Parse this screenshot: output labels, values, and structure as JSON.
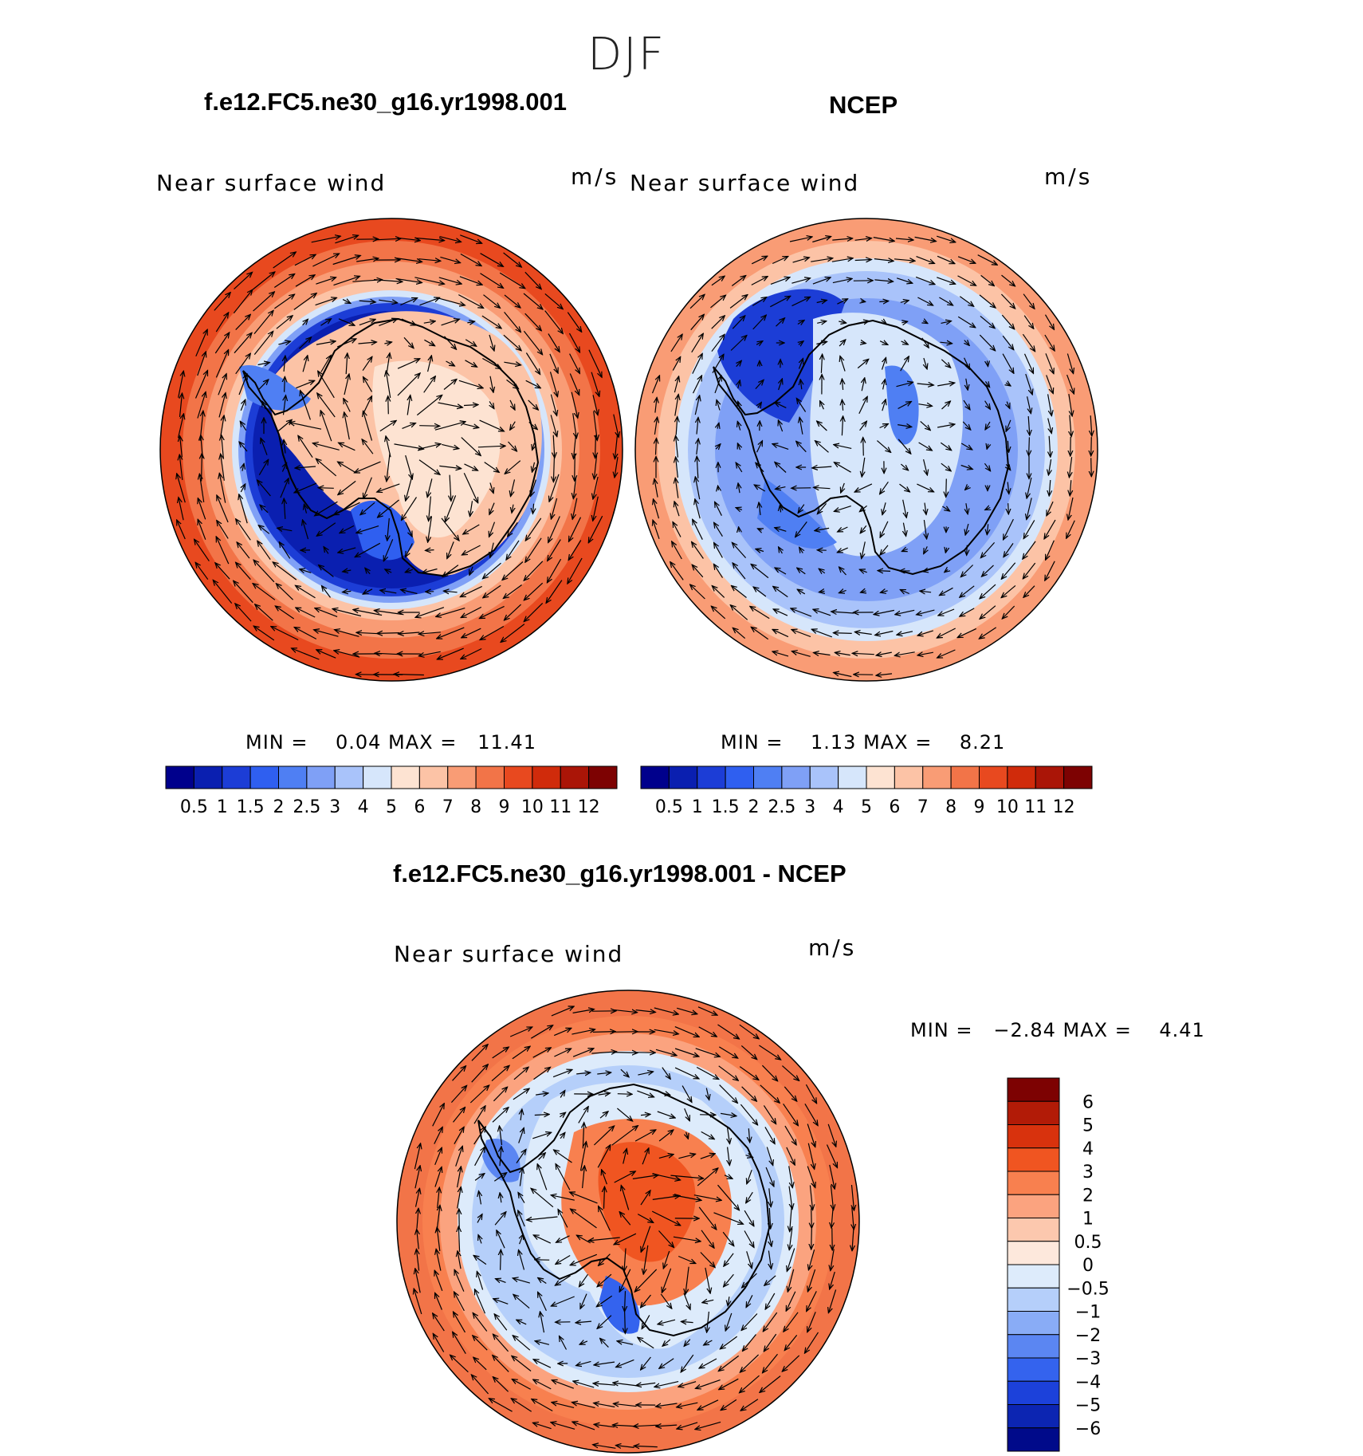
{
  "season": "DJF",
  "chart_data": [
    {
      "type": "heatmap",
      "title": "f.e12.FC5.ne30_g16.yr1998.001",
      "variable": "Near surface wind",
      "units": "m/s",
      "projection": "south polar stereographic",
      "min_max_text": "MIN =    0.04 MAX =   11.41",
      "min": 0.04,
      "max": 11.41,
      "colorbar_levels": [
        "0.5",
        "1",
        "1.5",
        "2",
        "2.5",
        "3",
        "4",
        "5",
        "6",
        "7",
        "8",
        "9",
        "10",
        "11",
        "12"
      ],
      "colorbar_colors": [
        "#00008c",
        "#0a1fb0",
        "#1c3dd6",
        "#2f5ff0",
        "#4f7ff3",
        "#7fa0f6",
        "#a9c3fa",
        "#d6e6fb",
        "#fde3d2",
        "#fcc3a6",
        "#f99c75",
        "#f27448",
        "#e8491f",
        "#d02b0b",
        "#aa1507",
        "#7d0202"
      ]
    },
    {
      "type": "heatmap",
      "title": "NCEP",
      "variable": "Near surface wind",
      "units": "m/s",
      "projection": "south polar stereographic",
      "min_max_text": "MIN =    1.13 MAX =    8.21",
      "min": 1.13,
      "max": 8.21,
      "colorbar_levels": [
        "0.5",
        "1",
        "1.5",
        "2",
        "2.5",
        "3",
        "4",
        "5",
        "6",
        "7",
        "8",
        "9",
        "10",
        "11",
        "12"
      ],
      "colorbar_colors": [
        "#00008c",
        "#0a1fb0",
        "#1c3dd6",
        "#2f5ff0",
        "#4f7ff3",
        "#7fa0f6",
        "#a9c3fa",
        "#d6e6fb",
        "#fde3d2",
        "#fcc3a6",
        "#f99c75",
        "#f27448",
        "#e8491f",
        "#d02b0b",
        "#aa1507",
        "#7d0202"
      ]
    },
    {
      "type": "heatmap",
      "title": "f.e12.FC5.ne30_g16.yr1998.001 - NCEP",
      "variable": "Near surface wind",
      "units": "m/s",
      "projection": "south polar stereographic",
      "min_max_text": "MIN =   −2.84 MAX =    4.41",
      "min": -2.84,
      "max": 4.41,
      "colorbar_levels": [
        "6",
        "5",
        "4",
        "3",
        "2",
        "1",
        "0.5",
        "0",
        "−0.5",
        "−1",
        "−2",
        "−3",
        "−4",
        "−5",
        "−6"
      ],
      "colorbar_colors": [
        "#7d0202",
        "#b21b07",
        "#d8320d",
        "#f05521",
        "#f8804f",
        "#fba37f",
        "#fcc8ae",
        "#fde8dc",
        "#ddebfb",
        "#b5cffa",
        "#89acf6",
        "#5b86f2",
        "#3463ee",
        "#1c41da",
        "#0c25b2",
        "#000a8a"
      ]
    }
  ]
}
